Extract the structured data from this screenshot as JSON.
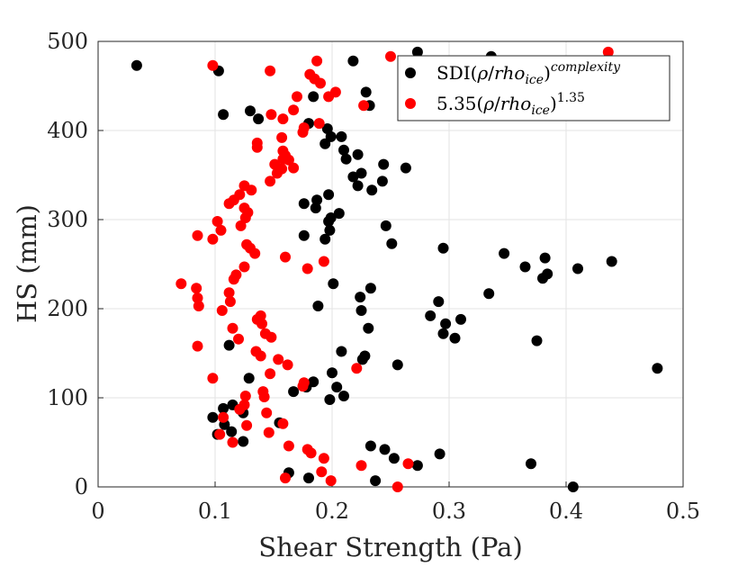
{
  "chart_data": {
    "type": "scatter",
    "xlabel": "Shear Strength (Pa)",
    "ylabel": "HS (mm)",
    "xlim": [
      0,
      0.5
    ],
    "ylim": [
      0,
      500
    ],
    "xticks": [
      "0",
      "0.1",
      "0.2",
      "0.3",
      "0.4",
      "0.5"
    ],
    "yticks": [
      "0",
      "100",
      "200",
      "300",
      "400",
      "500"
    ],
    "grid": true,
    "legend_position": "top-right",
    "series": [
      {
        "name": "SDI(ρ/rho_ice)^complexity",
        "legend": {
          "main": "SDI(",
          "rho": "ρ",
          "slash": "/",
          "rho_ice": "rho",
          "sub": "ice",
          "close": ")",
          "sup": "complexity"
        },
        "color": "#000000",
        "points": [
          [
            0.033,
            473
          ],
          [
            0.103,
            467
          ],
          [
            0.107,
            418
          ],
          [
            0.13,
            422
          ],
          [
            0.137,
            413
          ],
          [
            0.184,
            438
          ],
          [
            0.218,
            478
          ],
          [
            0.273,
            488
          ],
          [
            0.336,
            483
          ],
          [
            0.229,
            443
          ],
          [
            0.232,
            428
          ],
          [
            0.18,
            408
          ],
          [
            0.196,
            402
          ],
          [
            0.199,
            393
          ],
          [
            0.208,
            393
          ],
          [
            0.194,
            385
          ],
          [
            0.21,
            378
          ],
          [
            0.212,
            368
          ],
          [
            0.222,
            373
          ],
          [
            0.244,
            362
          ],
          [
            0.263,
            358
          ],
          [
            0.225,
            352
          ],
          [
            0.218,
            348
          ],
          [
            0.222,
            338
          ],
          [
            0.234,
            333
          ],
          [
            0.243,
            343
          ],
          [
            0.197,
            328
          ],
          [
            0.187,
            322
          ],
          [
            0.176,
            318
          ],
          [
            0.186,
            313
          ],
          [
            0.206,
            307
          ],
          [
            0.199,
            302
          ],
          [
            0.197,
            298
          ],
          [
            0.198,
            288
          ],
          [
            0.194,
            278
          ],
          [
            0.176,
            282
          ],
          [
            0.246,
            293
          ],
          [
            0.251,
            273
          ],
          [
            0.295,
            268
          ],
          [
            0.347,
            262
          ],
          [
            0.382,
            257
          ],
          [
            0.365,
            247
          ],
          [
            0.384,
            239
          ],
          [
            0.38,
            234
          ],
          [
            0.41,
            245
          ],
          [
            0.439,
            253
          ],
          [
            0.201,
            228
          ],
          [
            0.233,
            223
          ],
          [
            0.224,
            213
          ],
          [
            0.225,
            198
          ],
          [
            0.188,
            203
          ],
          [
            0.334,
            217
          ],
          [
            0.291,
            208
          ],
          [
            0.284,
            192
          ],
          [
            0.297,
            183
          ],
          [
            0.31,
            188
          ],
          [
            0.295,
            172
          ],
          [
            0.305,
            167
          ],
          [
            0.231,
            178
          ],
          [
            0.375,
            164
          ],
          [
            0.112,
            159
          ],
          [
            0.208,
            152
          ],
          [
            0.228,
            147
          ],
          [
            0.226,
            143
          ],
          [
            0.256,
            137
          ],
          [
            0.478,
            133
          ],
          [
            0.2,
            128
          ],
          [
            0.129,
            122
          ],
          [
            0.184,
            118
          ],
          [
            0.178,
            112
          ],
          [
            0.204,
            112
          ],
          [
            0.167,
            107
          ],
          [
            0.21,
            102
          ],
          [
            0.198,
            98
          ],
          [
            0.115,
            92
          ],
          [
            0.107,
            88
          ],
          [
            0.124,
            83
          ],
          [
            0.098,
            78
          ],
          [
            0.108,
            70
          ],
          [
            0.114,
            62
          ],
          [
            0.102,
            59
          ],
          [
            0.124,
            51
          ],
          [
            0.155,
            72
          ],
          [
            0.233,
            46
          ],
          [
            0.245,
            42
          ],
          [
            0.253,
            32
          ],
          [
            0.292,
            37
          ],
          [
            0.273,
            24
          ],
          [
            0.37,
            26
          ],
          [
            0.163,
            16
          ],
          [
            0.18,
            10
          ],
          [
            0.237,
            7
          ],
          [
            0.406,
            0
          ]
        ]
      },
      {
        "name": "5.35(ρ/rho_ice)^1.35",
        "legend": {
          "main": "5.35(",
          "rho": "ρ",
          "slash": "/",
          "rho_ice": "rho",
          "sub": "ice",
          "close": ")",
          "sup": "1.35"
        },
        "color": "#ff0000",
        "points": [
          [
            0.098,
            473
          ],
          [
            0.147,
            467
          ],
          [
            0.187,
            478
          ],
          [
            0.181,
            463
          ],
          [
            0.185,
            458
          ],
          [
            0.19,
            453
          ],
          [
            0.203,
            443
          ],
          [
            0.197,
            438
          ],
          [
            0.17,
            438
          ],
          [
            0.167,
            423
          ],
          [
            0.227,
            428
          ],
          [
            0.25,
            483
          ],
          [
            0.436,
            488
          ],
          [
            0.148,
            418
          ],
          [
            0.158,
            413
          ],
          [
            0.176,
            403
          ],
          [
            0.175,
            398
          ],
          [
            0.189,
            408
          ],
          [
            0.157,
            392
          ],
          [
            0.136,
            386
          ],
          [
            0.136,
            381
          ],
          [
            0.158,
            377
          ],
          [
            0.16,
            372
          ],
          [
            0.158,
            368
          ],
          [
            0.163,
            367
          ],
          [
            0.151,
            362
          ],
          [
            0.157,
            357
          ],
          [
            0.167,
            358
          ],
          [
            0.153,
            352
          ],
          [
            0.147,
            343
          ],
          [
            0.125,
            338
          ],
          [
            0.131,
            333
          ],
          [
            0.121,
            328
          ],
          [
            0.116,
            322
          ],
          [
            0.112,
            318
          ],
          [
            0.125,
            313
          ],
          [
            0.128,
            308
          ],
          [
            0.126,
            302
          ],
          [
            0.102,
            298
          ],
          [
            0.122,
            293
          ],
          [
            0.105,
            288
          ],
          [
            0.085,
            282
          ],
          [
            0.098,
            278
          ],
          [
            0.127,
            272
          ],
          [
            0.13,
            268
          ],
          [
            0.134,
            262
          ],
          [
            0.16,
            258
          ],
          [
            0.193,
            253
          ],
          [
            0.179,
            245
          ],
          [
            0.125,
            247
          ],
          [
            0.118,
            238
          ],
          [
            0.116,
            233
          ],
          [
            0.071,
            228
          ],
          [
            0.084,
            223
          ],
          [
            0.112,
            218
          ],
          [
            0.085,
            212
          ],
          [
            0.113,
            208
          ],
          [
            0.086,
            203
          ],
          [
            0.106,
            198
          ],
          [
            0.139,
            192
          ],
          [
            0.136,
            188
          ],
          [
            0.14,
            183
          ],
          [
            0.115,
            178
          ],
          [
            0.143,
            172
          ],
          [
            0.148,
            168
          ],
          [
            0.12,
            166
          ],
          [
            0.085,
            158
          ],
          [
            0.135,
            152
          ],
          [
            0.139,
            147
          ],
          [
            0.154,
            143
          ],
          [
            0.162,
            137
          ],
          [
            0.221,
            133
          ],
          [
            0.147,
            127
          ],
          [
            0.098,
            122
          ],
          [
            0.176,
            117
          ],
          [
            0.175,
            113
          ],
          [
            0.141,
            107
          ],
          [
            0.142,
            101
          ],
          [
            0.126,
            102
          ],
          [
            0.125,
            92
          ],
          [
            0.121,
            87
          ],
          [
            0.144,
            83
          ],
          [
            0.158,
            71
          ],
          [
            0.127,
            69
          ],
          [
            0.107,
            78
          ],
          [
            0.104,
            59
          ],
          [
            0.146,
            61
          ],
          [
            0.115,
            50
          ],
          [
            0.163,
            46
          ],
          [
            0.179,
            42
          ],
          [
            0.182,
            38
          ],
          [
            0.193,
            32
          ],
          [
            0.225,
            24
          ],
          [
            0.265,
            26
          ],
          [
            0.191,
            17
          ],
          [
            0.16,
            10
          ],
          [
            0.199,
            7
          ],
          [
            0.256,
            0
          ]
        ]
      }
    ]
  }
}
